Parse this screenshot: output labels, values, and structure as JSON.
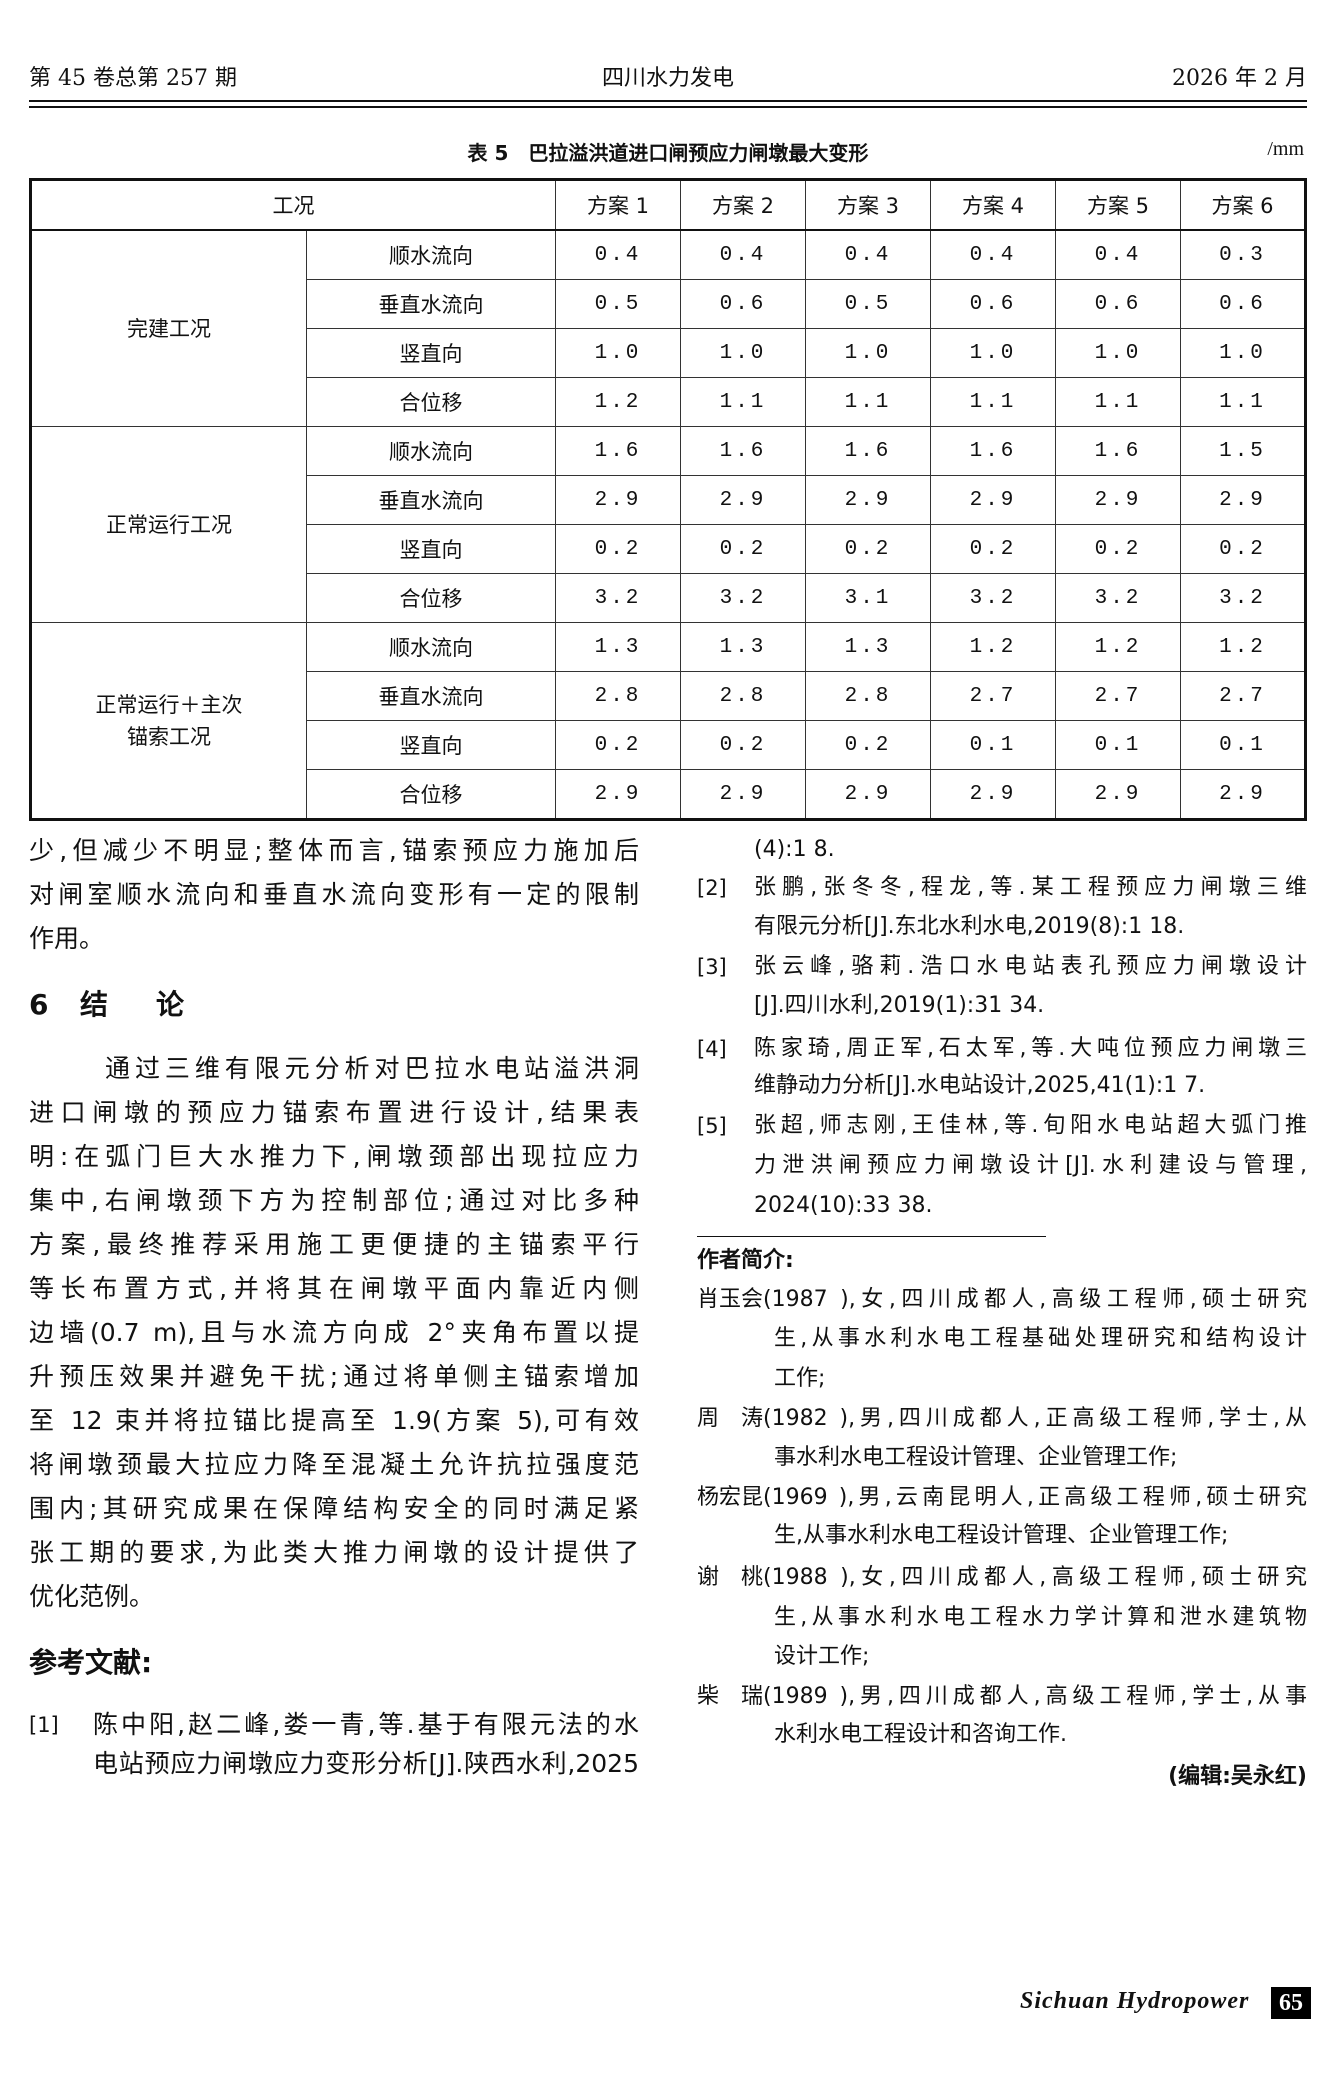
{
  "header": {
    "issue": "第 45 卷总第 257 期",
    "journal": "四川水力发电",
    "date": "2026 年 2 月"
  },
  "table": {
    "caption": "表 5　巴拉溢洪道进口闸预应力闸墩最大变形",
    "unit": "/mm",
    "corner_header": "工况",
    "scheme_headers": [
      "方案 1",
      "方案 2",
      "方案 3",
      "方案 4",
      "方案 5",
      "方案 6"
    ],
    "groups": [
      {
        "condition": "完建工况",
        "rows": [
          {
            "direction": "顺水流向",
            "values": [
              "0.4",
              "0.4",
              "0.4",
              "0.4",
              "0.4",
              "0.3"
            ]
          },
          {
            "direction": "垂直水流向",
            "values": [
              "0.5",
              "0.6",
              "0.5",
              "0.6",
              "0.6",
              "0.6"
            ]
          },
          {
            "direction": "竖直向",
            "values": [
              "1.0",
              "1.0",
              "1.0",
              "1.0",
              "1.0",
              "1.0"
            ]
          },
          {
            "direction": "合位移",
            "values": [
              "1.2",
              "1.1",
              "1.1",
              "1.1",
              "1.1",
              "1.1"
            ]
          }
        ]
      },
      {
        "condition": "正常运行工况",
        "rows": [
          {
            "direction": "顺水流向",
            "values": [
              "1.6",
              "1.6",
              "1.6",
              "1.6",
              "1.6",
              "1.5"
            ]
          },
          {
            "direction": "垂直水流向",
            "values": [
              "2.9",
              "2.9",
              "2.9",
              "2.9",
              "2.9",
              "2.9"
            ]
          },
          {
            "direction": "竖直向",
            "values": [
              "0.2",
              "0.2",
              "0.2",
              "0.2",
              "0.2",
              "0.2"
            ]
          },
          {
            "direction": "合位移",
            "values": [
              "3.2",
              "3.2",
              "3.1",
              "3.2",
              "3.2",
              "3.2"
            ]
          }
        ]
      },
      {
        "condition": "正常运行＋主次\n锚索工况",
        "rows": [
          {
            "direction": "顺水流向",
            "values": [
              "1.3",
              "1.3",
              "1.3",
              "1.2",
              "1.2",
              "1.2"
            ]
          },
          {
            "direction": "垂直水流向",
            "values": [
              "2.8",
              "2.8",
              "2.8",
              "2.7",
              "2.7",
              "2.7"
            ]
          },
          {
            "direction": "竖直向",
            "values": [
              "0.2",
              "0.2",
              "0.2",
              "0.1",
              "0.1",
              "0.1"
            ]
          },
          {
            "direction": "合位移",
            "values": [
              "2.9",
              "2.9",
              "2.9",
              "2.9",
              "2.9",
              "2.9"
            ]
          }
        ]
      }
    ]
  },
  "body": {
    "continuation_lines": [
      "少,但减少不明显;整体而言,锚索预应力施加后",
      "对闸室顺水流向和垂直水流向变形有一定的限制",
      "作用。"
    ],
    "section": {
      "number": "6",
      "title": "结　论"
    },
    "conclusion_lines": [
      "通过三维有限元分析对巴拉水电站溢洪洞",
      "进口闸墩的预应力锚索布置进行设计,结果表",
      "明:在弧门巨大水推力下,闸墩颈部出现拉应力",
      "集中,右闸墩颈下方为控制部位;通过对比多种",
      "方案,最终推荐采用施工更便捷的主锚索平行",
      "等长布置方式,并将其在闸墩平面内靠近内侧",
      "边墙(0.7 m),且与水流方向成 2°夹角布置以提",
      "升预压效果并避免干扰;通过将单侧主锚索增加",
      "至 12 束并将拉锚比提高至 1.9(方案 5),可有效",
      "将闸墩颈最大拉应力降至混凝土允许抗拉强度范",
      "围内;其研究成果在保障结构安全的同时满足紧",
      "张工期的要求,为此类大推力闸墩的设计提供了",
      "优化范例。"
    ],
    "references_heading": "参考文献:",
    "references": [
      {
        "num": "[1]",
        "lines": [
          "陈中阳,赵二峰,娄一青,等.基于有限元法的水",
          "电站预应力闸墩应力变形分析[J].陕西水利,2025",
          "(4):1 8."
        ]
      },
      {
        "num": "[2]",
        "lines": [
          "张鹏,张冬冬,程龙,等.某工程预应力闸墩三维",
          "有限元分析[J].东北水利水电,2019(8):1 18."
        ]
      },
      {
        "num": "[3]",
        "lines": [
          "张云峰,骆莉.浩口水电站表孔预应力闸墩设计",
          "[J].四川水利,2019(1):31 34."
        ]
      },
      {
        "num": "[4]",
        "lines": [
          "陈家琦,周正军,石太军,等.大吨位预应力闸墩三",
          "维静动力分析[J].水电站设计,2025,41(1):1 7."
        ]
      },
      {
        "num": "[5]",
        "lines": [
          "张超,师志刚,王佳林,等.旬阳水电站超大弧门推",
          "力泄洪闸预应力闸墩设计[J].水利建设与管理,",
          "2024(10):33 38."
        ]
      }
    ],
    "authors_heading": "作者简介:",
    "authors": [
      {
        "name": "肖玉会",
        "lines": [
          "(1987 ),女,四川成都人,高级工程师,硕士研究",
          "生,从事水利水电工程基础处理研究和结构设计",
          "工作;"
        ]
      },
      {
        "name": "周　涛",
        "lines": [
          "(1982 ),男,四川成都人,正高级工程师,学士,从",
          "事水利水电工程设计管理、企业管理工作;"
        ]
      },
      {
        "name": "杨宏昆",
        "lines": [
          "(1969 ),男,云南昆明人,正高级工程师,硕士研究",
          "生,从事水利水电工程设计管理、企业管理工作;"
        ]
      },
      {
        "name": "谢　桃",
        "lines": [
          "(1988 ),女,四川成都人,高级工程师,硕士研究",
          "生,从事水利水电工程水力学计算和泄水建筑物",
          "设计工作;"
        ]
      },
      {
        "name": "柴　瑞",
        "lines": [
          "(1989 ),男,四川成都人,高级工程师,学士,从事",
          "水利水电工程设计和咨询工作."
        ]
      }
    ],
    "editor": "(编辑:吴永红)"
  },
  "footer": {
    "journal_en": "Sichuan Hydropower",
    "page_number": "65"
  }
}
